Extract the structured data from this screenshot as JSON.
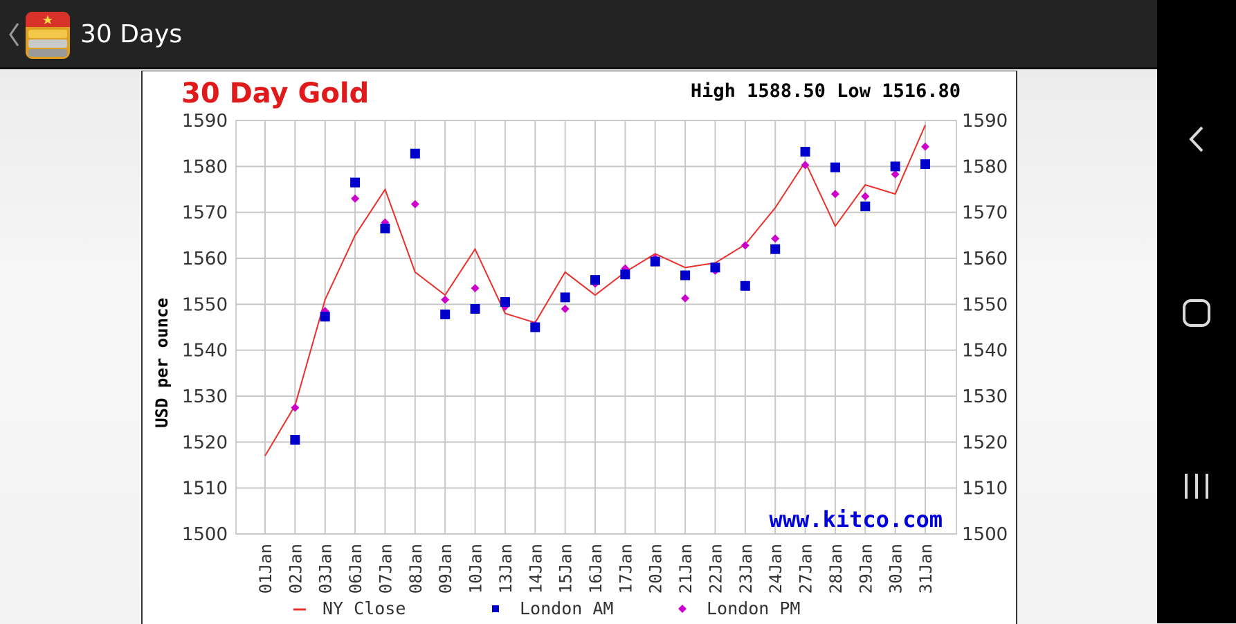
{
  "app_bar": {
    "title": "30 Days",
    "back_icon": "chevron-left-icon",
    "app_icon": "gold-bars-icon",
    "background": "#232323"
  },
  "nav_bar": {
    "back_icon": "nav-back-icon",
    "home_icon": "nav-home-icon",
    "recents_icon": "nav-recents-icon"
  },
  "chart_data": {
    "type": "line",
    "title": "30 Day Gold",
    "summary": "High 1588.50 Low 1516.80",
    "ylabel": "USD per ounce",
    "xlabel": "",
    "watermark": "www.kitco.com",
    "ylim": [
      1500,
      1590
    ],
    "yticks": [
      1500,
      1510,
      1520,
      1530,
      1540,
      1550,
      1560,
      1570,
      1580,
      1590
    ],
    "grid": true,
    "y_axis_both_sides": true,
    "legend_position": "bottom",
    "categories": [
      "01Jan",
      "02Jan",
      "03Jan",
      "06Jan",
      "07Jan",
      "08Jan",
      "09Jan",
      "10Jan",
      "13Jan",
      "14Jan",
      "15Jan",
      "16Jan",
      "17Jan",
      "20Jan",
      "21Jan",
      "22Jan",
      "23Jan",
      "24Jan",
      "27Jan",
      "28Jan",
      "29Jan",
      "30Jan",
      "31Jan"
    ],
    "series": [
      {
        "name": "NY Close",
        "type": "line",
        "color": "#e8302c",
        "values": [
          1517,
          1528,
          1551,
          1565,
          1575,
          1557,
          1552,
          1562,
          1548,
          1546,
          1557,
          1552,
          1557,
          1561,
          1558,
          1559,
          1563,
          1571,
          1581,
          1567,
          1576,
          1574,
          1589
        ]
      },
      {
        "name": "London AM",
        "type": "square",
        "color": "#0000cc",
        "values": [
          null,
          1520.5,
          1547.3,
          1576.5,
          1566.5,
          1582.8,
          1547.8,
          1549,
          1550.5,
          1545,
          1551.5,
          1555.3,
          1556.5,
          1559.3,
          1556.3,
          1558,
          1554,
          1562,
          1583.2,
          1579.8,
          1571.3,
          1580,
          1580.5
        ]
      },
      {
        "name": "London PM",
        "type": "diamond",
        "color": "#cc00cc",
        "values": [
          null,
          1527.5,
          1548.5,
          1573,
          1567.8,
          1571.8,
          1551,
          1553.5,
          1549.5,
          1545.5,
          1549,
          1554.5,
          1557.8,
          1560,
          1551.3,
          1557.3,
          1562.8,
          1564.3,
          1580.3,
          1574,
          1573.5,
          1578.3,
          1584.3
        ]
      }
    ]
  }
}
